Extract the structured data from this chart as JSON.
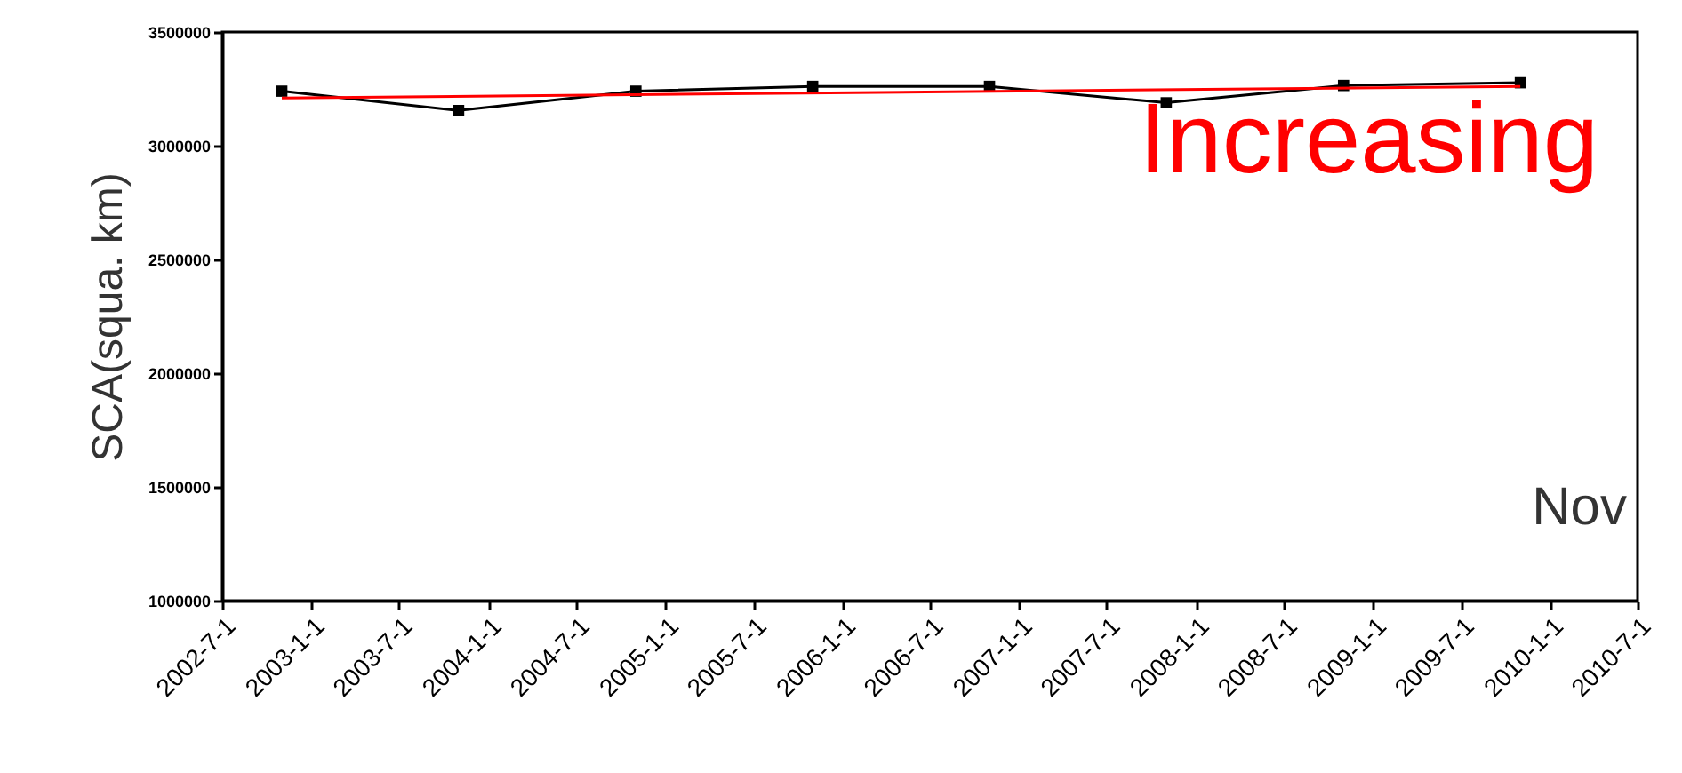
{
  "chart_data": {
    "type": "line",
    "ylabel": "SCA(squa. km)",
    "x": [
      "2002-11-01",
      "2003-11-01",
      "2004-11-01",
      "2005-11-01",
      "2006-11-01",
      "2007-11-01",
      "2008-11-01",
      "2009-11-01"
    ],
    "series": [
      {
        "color": "#000000",
        "values": [
          3240000,
          3155000,
          3240000,
          3261000,
          3261000,
          3189000,
          3265000,
          3277000
        ],
        "marker": "square"
      },
      {
        "color": "#ff0000",
        "x": [
          "2002-11-01",
          "2009-11-01"
        ],
        "values": [
          3210000,
          3261000
        ],
        "marker": "none"
      }
    ],
    "xlim": [
      "2002-07-01",
      "2010-07-01"
    ],
    "xticks": [
      {
        "value": "2002-07-01",
        "label": "2002-7-1"
      },
      {
        "value": "2003-01-01",
        "label": "2003-1-1"
      },
      {
        "value": "2003-07-01",
        "label": "2003-7-1"
      },
      {
        "value": "2004-01-01",
        "label": "2004-1-1"
      },
      {
        "value": "2004-07-01",
        "label": "2004-7-1"
      },
      {
        "value": "2005-01-01",
        "label": "2005-1-1"
      },
      {
        "value": "2005-07-01",
        "label": "2005-7-1"
      },
      {
        "value": "2006-01-01",
        "label": "2006-1-1"
      },
      {
        "value": "2006-07-01",
        "label": "2006-7-1"
      },
      {
        "value": "2007-01-01",
        "label": "2007-1-1"
      },
      {
        "value": "2007-07-01",
        "label": "2007-7-1"
      },
      {
        "value": "2008-01-01",
        "label": "2008-1-1"
      },
      {
        "value": "2008-07-01",
        "label": "2008-7-1"
      },
      {
        "value": "2009-01-01",
        "label": "2009-1-1"
      },
      {
        "value": "2009-07-01",
        "label": "2009-7-1"
      },
      {
        "value": "2010-01-01",
        "label": "2010-1-1"
      },
      {
        "value": "2010-07-01",
        "label": "2010-7-1"
      }
    ],
    "ylim": [
      1000000,
      3500000
    ],
    "yticks": [
      1000000,
      1500000,
      2000000,
      2500000,
      3000000,
      3500000
    ],
    "annotations": [
      "Increasing",
      "Nov"
    ],
    "grid": false,
    "line_style": "solid"
  }
}
